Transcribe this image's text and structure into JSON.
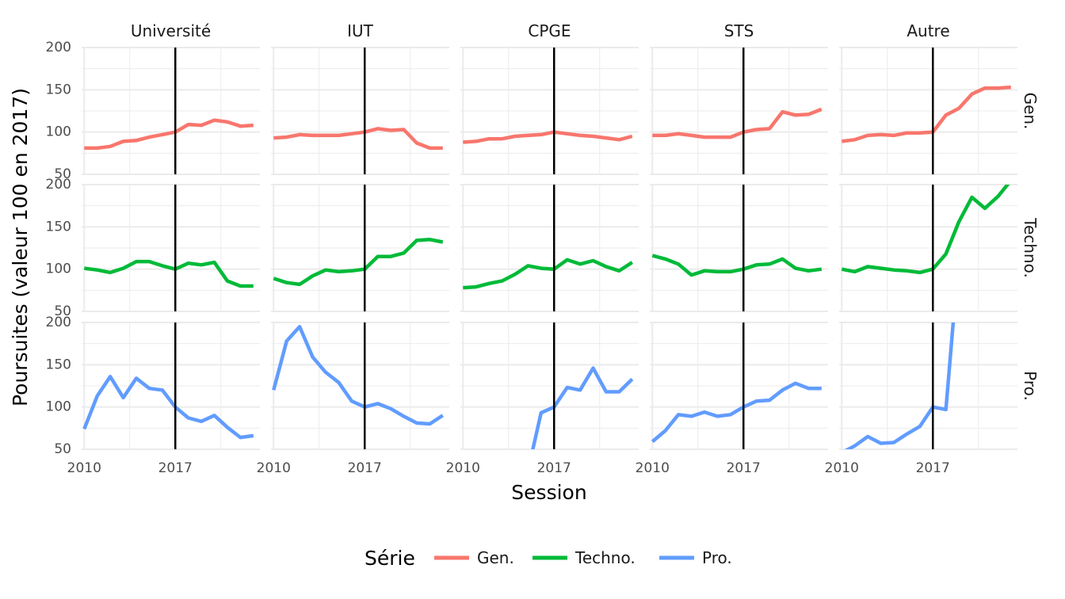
{
  "chart_data": {
    "type": "line",
    "facet_cols": [
      "Université",
      "IUT",
      "CPGE",
      "STS",
      "Autre"
    ],
    "facet_rows": [
      "Gen.",
      "Techno.",
      "Pro."
    ],
    "xlabel": "Session",
    "ylabel": "Poursuites (valeur 100 en 2017)",
    "xlim": [
      2009.8,
      2023.5
    ],
    "ylim": [
      50,
      200
    ],
    "x_ticks": [
      2010,
      2017
    ],
    "y_ticks": [
      50,
      100,
      150,
      200
    ],
    "reference_line": 2017,
    "legend_title": "Série",
    "legend_position": "bottom",
    "grid": true,
    "colors": {
      "Gen.": "#F8766D",
      "Techno.": "#00BA38",
      "Pro.": "#619CFF"
    },
    "x": [
      2010,
      2011,
      2012,
      2013,
      2014,
      2015,
      2016,
      2017,
      2018,
      2019,
      2020,
      2021,
      2022,
      2023
    ],
    "series": [
      {
        "name": "Gen.",
        "panel": "Université",
        "values": [
          81,
          81,
          83,
          89,
          90,
          94,
          97,
          100,
          109,
          108,
          114,
          112,
          107,
          108
        ]
      },
      {
        "name": "Gen.",
        "panel": "IUT",
        "values": [
          93,
          94,
          97,
          96,
          96,
          96,
          98,
          100,
          104,
          102,
          103,
          87,
          81,
          81
        ]
      },
      {
        "name": "Gen.",
        "panel": "CPGE",
        "values": [
          88,
          89,
          92,
          92,
          95,
          96,
          97,
          100,
          98,
          96,
          95,
          93,
          91,
          95
        ]
      },
      {
        "name": "Gen.",
        "panel": "STS",
        "values": [
          96,
          96,
          98,
          96,
          94,
          94,
          94,
          100,
          103,
          104,
          124,
          120,
          121,
          127
        ]
      },
      {
        "name": "Gen.",
        "panel": "Autre",
        "values": [
          89,
          91,
          96,
          97,
          96,
          99,
          99,
          100,
          120,
          128,
          145,
          152,
          152,
          153
        ]
      },
      {
        "name": "Techno.",
        "panel": "Université",
        "values": [
          101,
          99,
          96,
          101,
          109,
          109,
          104,
          100,
          107,
          105,
          108,
          86,
          80,
          80
        ]
      },
      {
        "name": "Techno.",
        "panel": "IUT",
        "values": [
          89,
          84,
          82,
          92,
          99,
          97,
          98,
          100,
          115,
          115,
          119,
          134,
          135,
          132
        ]
      },
      {
        "name": "Techno.",
        "panel": "CPGE",
        "values": [
          78,
          79,
          83,
          86,
          94,
          104,
          101,
          100,
          111,
          106,
          110,
          103,
          98,
          108
        ]
      },
      {
        "name": "Techno.",
        "panel": "STS",
        "values": [
          116,
          112,
          106,
          93,
          98,
          97,
          97,
          100,
          105,
          106,
          112,
          101,
          98,
          100
        ]
      },
      {
        "name": "Techno.",
        "panel": "Autre",
        "values": [
          100,
          97,
          103,
          101,
          99,
          98,
          96,
          100,
          118,
          156,
          185,
          172,
          186,
          205
        ]
      },
      {
        "name": "Pro.",
        "panel": "Université",
        "values": [
          74,
          113,
          136,
          111,
          134,
          122,
          120,
          100,
          87,
          83,
          90,
          76,
          64,
          66
        ]
      },
      {
        "name": "Pro.",
        "panel": "IUT",
        "values": [
          120,
          178,
          195,
          159,
          141,
          129,
          107,
          100,
          104,
          98,
          89,
          81,
          80,
          90
        ]
      },
      {
        "name": "Pro.",
        "panel": "CPGE",
        "values": [
          null,
          null,
          null,
          null,
          null,
          25,
          93,
          100,
          123,
          120,
          146,
          118,
          118,
          133
        ]
      },
      {
        "name": "Pro.",
        "panel": "STS",
        "values": [
          59,
          72,
          91,
          89,
          94,
          89,
          91,
          100,
          107,
          108,
          120,
          128,
          122,
          122
        ]
      },
      {
        "name": "Pro.",
        "panel": "Autre",
        "values": [
          46,
          54,
          65,
          57,
          58,
          68,
          77,
          100,
          97,
          280,
          null,
          null,
          null,
          null
        ]
      }
    ]
  }
}
